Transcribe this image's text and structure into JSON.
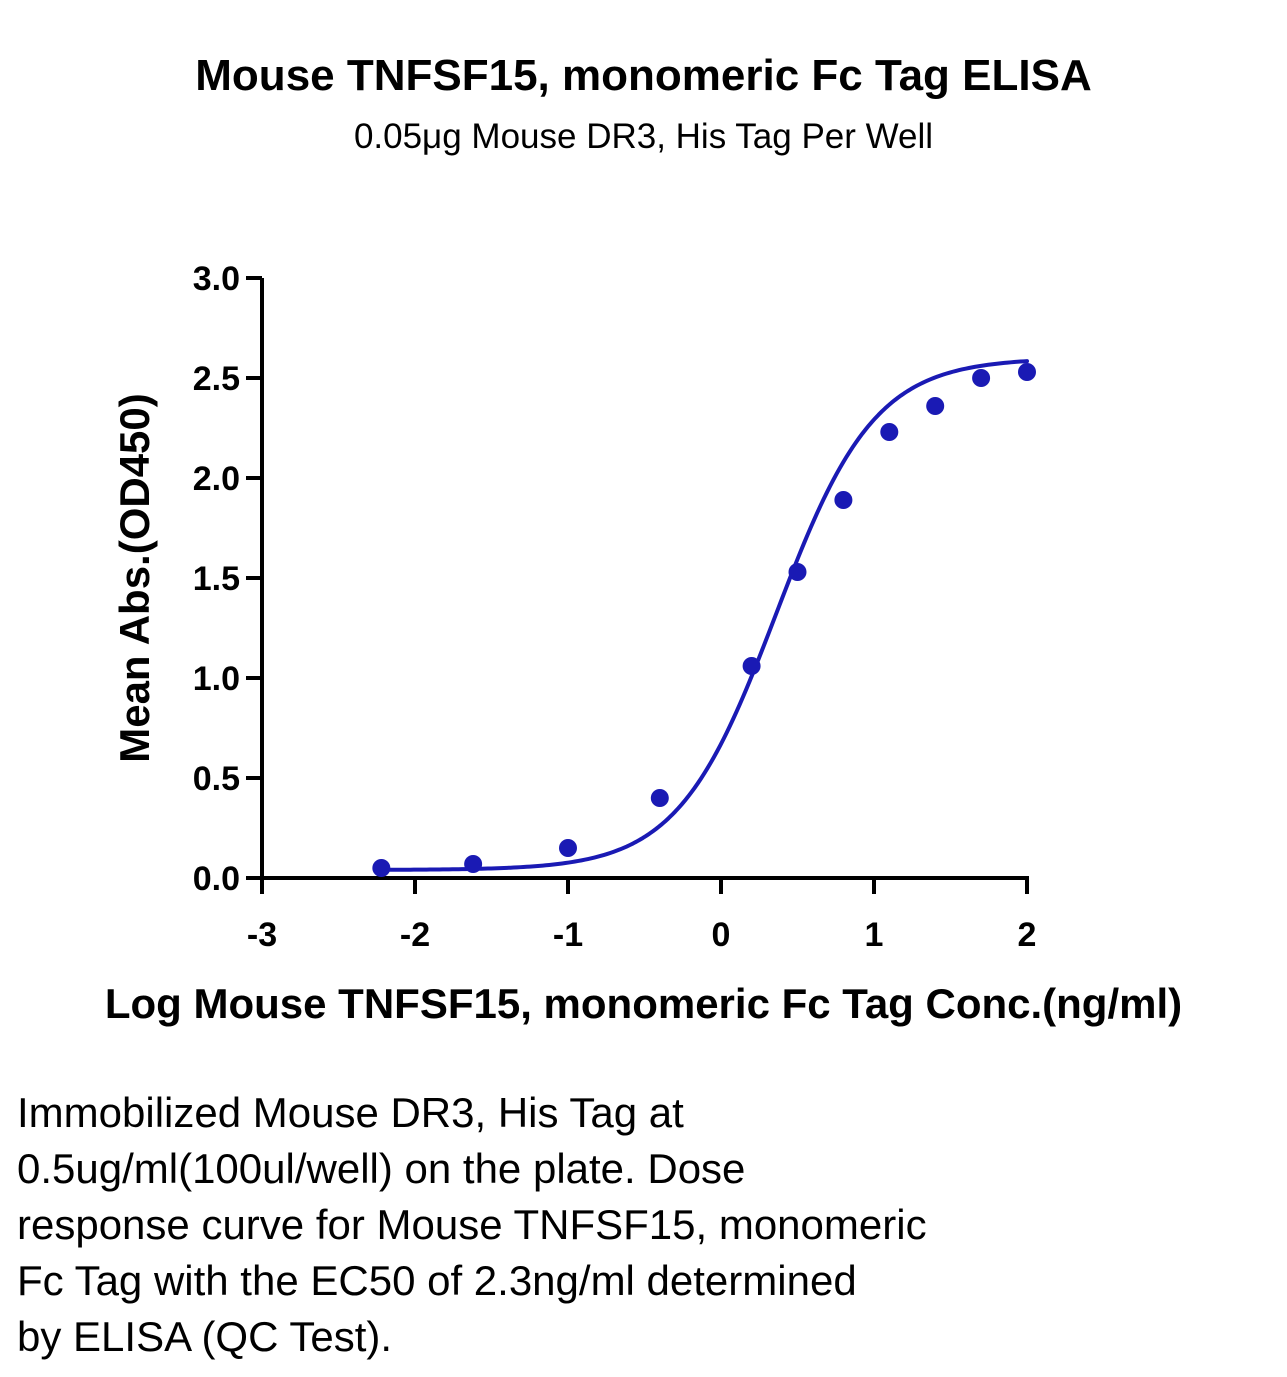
{
  "chart_data": {
    "type": "scatter",
    "title": "Mouse TNFSF15, monomeric Fc Tag ELISA",
    "subtitle": "0.05μg Mouse DR3, His Tag Per Well",
    "xlabel": "Log Mouse TNFSF15, monomeric Fc Tag Conc.(ng/ml)",
    "ylabel": "Mean Abs.(OD450)",
    "xlim": [
      -3,
      2
    ],
    "ylim": [
      0,
      3
    ],
    "x_ticks": [
      "-3",
      "-2",
      "-1",
      "0",
      "1",
      "2"
    ],
    "y_ticks": [
      "0.0",
      "0.5",
      "1.0",
      "1.5",
      "2.0",
      "2.5",
      "3.0"
    ],
    "grid": false,
    "series": [
      {
        "color": "#1a1ab4",
        "points": [
          {
            "x": -2.22,
            "y": 0.05
          },
          {
            "x": -1.62,
            "y": 0.07
          },
          {
            "x": -1.0,
            "y": 0.15
          },
          {
            "x": -0.4,
            "y": 0.4
          },
          {
            "x": 0.2,
            "y": 1.06
          },
          {
            "x": 0.5,
            "y": 1.53
          },
          {
            "x": 0.8,
            "y": 1.89
          },
          {
            "x": 1.1,
            "y": 2.23
          },
          {
            "x": 1.4,
            "y": 2.36
          },
          {
            "x": 1.7,
            "y": 2.5
          },
          {
            "x": 2.0,
            "y": 2.53
          }
        ],
        "fit": {
          "model": "4PL",
          "bottom": 0.04,
          "top": 2.6,
          "logEC50": 0.36,
          "hill": 1.35,
          "x_range": [
            -2.22,
            2.0
          ]
        }
      }
    ]
  },
  "caption": {
    "lines": [
      "Immobilized Mouse DR3, His Tag at",
      "0.5ug/ml(100ul/well) on the plate. Dose",
      "response curve for Mouse TNFSF15, monomeric",
      "Fc Tag with the EC50 of 2.3ng/ml determined",
      "by ELISA (QC Test)."
    ]
  }
}
